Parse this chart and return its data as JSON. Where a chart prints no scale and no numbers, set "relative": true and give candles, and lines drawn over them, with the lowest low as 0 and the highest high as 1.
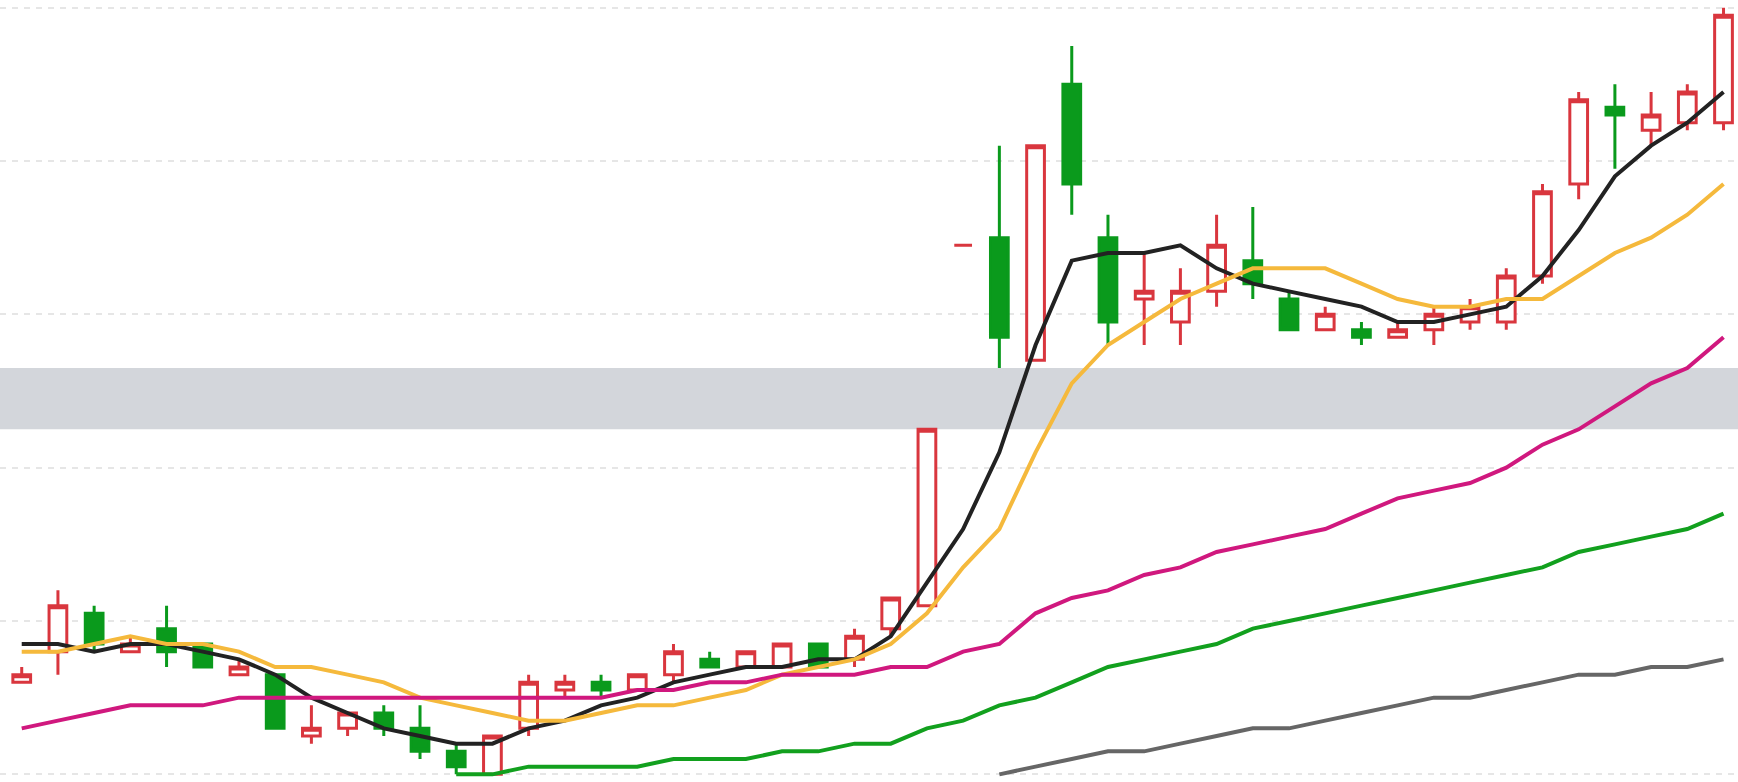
{
  "chart_data": {
    "type": "candlestick",
    "relative": true,
    "grid": "y",
    "categories": [
      null,
      null,
      null,
      null,
      null,
      null,
      null,
      null,
      null,
      null,
      null,
      null,
      null,
      null,
      null,
      null,
      null,
      null,
      null,
      null,
      null,
      null,
      null,
      null,
      null,
      null,
      null,
      null,
      null,
      null,
      null,
      null,
      null,
      null,
      null,
      null,
      null,
      null,
      null,
      null,
      null,
      null,
      null,
      null,
      null,
      null,
      null,
      null
    ],
    "ohlc": [
      [
        0.12,
        0.14,
        0.12,
        0.13
      ],
      [
        0.16,
        0.24,
        0.13,
        0.22
      ],
      [
        0.21,
        0.22,
        0.16,
        0.17
      ],
      [
        0.16,
        0.18,
        0.16,
        0.17
      ],
      [
        0.19,
        0.22,
        0.14,
        0.16
      ],
      [
        0.17,
        0.17,
        0.14,
        0.14
      ],
      [
        0.13,
        0.15,
        0.13,
        0.14
      ],
      [
        0.13,
        0.13,
        0.06,
        0.06
      ],
      [
        0.05,
        0.09,
        0.04,
        0.06
      ],
      [
        0.06,
        0.08,
        0.05,
        0.08
      ],
      [
        0.08,
        0.09,
        0.05,
        0.06
      ],
      [
        0.06,
        0.09,
        0.02,
        0.03
      ],
      [
        0.03,
        0.04,
        0,
        0.01
      ],
      [
        0,
        0.05,
        0,
        0.05
      ],
      [
        0.06,
        0.13,
        0.05,
        0.12
      ],
      [
        0.11,
        0.13,
        0.1,
        0.12
      ],
      [
        0.12,
        0.13,
        0.1,
        0.11
      ],
      [
        0.11,
        0.13,
        0.11,
        0.13
      ],
      [
        0.13,
        0.17,
        0.12,
        0.16
      ],
      [
        0.15,
        0.16,
        0.14,
        0.14
      ],
      [
        0.14,
        0.16,
        0.14,
        0.16
      ],
      [
        0.14,
        0.17,
        0.14,
        0.17
      ],
      [
        0.17,
        0.17,
        0.14,
        0.14
      ],
      [
        0.15,
        0.19,
        0.14,
        0.18
      ],
      [
        0.19,
        0.23,
        0.18,
        0.23
      ],
      [
        0.22,
        0.45,
        0.22,
        0.45
      ],
      [
        0.69,
        0.69,
        0.69,
        0.69
      ],
      [
        0.7,
        0.82,
        0.53,
        0.57
      ],
      [
        0.54,
        0.82,
        0.54,
        0.82
      ],
      [
        0.9,
        0.95,
        0.73,
        0.77
      ],
      [
        0.7,
        0.73,
        0.56,
        0.59
      ],
      [
        0.62,
        0.68,
        0.56,
        0.63
      ],
      [
        0.59,
        0.66,
        0.56,
        0.63
      ],
      [
        0.63,
        0.73,
        0.61,
        0.69
      ],
      [
        0.67,
        0.74,
        0.62,
        0.64
      ],
      [
        0.62,
        0.63,
        0.58,
        0.58
      ],
      [
        0.58,
        0.61,
        0.58,
        0.6
      ],
      [
        0.58,
        0.59,
        0.56,
        0.57
      ],
      [
        0.57,
        0.59,
        0.57,
        0.58
      ],
      [
        0.58,
        0.61,
        0.56,
        0.6
      ],
      [
        0.59,
        0.62,
        0.58,
        0.61
      ],
      [
        0.59,
        0.66,
        0.58,
        0.65
      ],
      [
        0.65,
        0.77,
        0.64,
        0.76
      ],
      [
        0.77,
        0.89,
        0.75,
        0.88
      ],
      [
        0.87,
        0.9,
        0.79,
        0.86
      ],
      [
        0.84,
        0.89,
        0.82,
        0.86
      ],
      [
        0.85,
        0.9,
        0.84,
        0.89
      ],
      [
        0.85,
        1,
        0.84,
        0.99
      ]
    ],
    "colors": [
      "#d9363e",
      "#d9363e",
      "#0a9a1c",
      "#d9363e",
      "#0a9a1c",
      "#0a9a1c",
      "#d9363e",
      "#0a9a1c",
      "#d9363e",
      "#d9363e",
      "#0a9a1c",
      "#0a9a1c",
      "#0a9a1c",
      "#d9363e",
      "#d9363e",
      "#d9363e",
      "#0a9a1c",
      "#d9363e",
      "#d9363e",
      "#0a9a1c",
      "#d9363e",
      "#d9363e",
      "#0a9a1c",
      "#d9363e",
      "#d9363e",
      "#d9363e",
      "#d9363e",
      "#0a9a1c",
      "#d9363e",
      "#0a9a1c",
      "#0a9a1c",
      "#d9363e",
      "#d9363e",
      "#d9363e",
      "#0a9a1c",
      "#0a9a1c",
      "#d9363e",
      "#0a9a1c",
      "#d9363e",
      "#d9363e",
      "#d9363e",
      "#d9363e",
      "#d9363e",
      "#d9363e",
      "#0a9a1c",
      "#d9363e",
      "#d9363e",
      "#d9363e"
    ],
    "series": [
      {
        "type": "line",
        "color": "#222222",
        "values": [
          0.17,
          0.17,
          0.16,
          0.17,
          0.17,
          0.16,
          0.15,
          0.13,
          0.1,
          0.08,
          0.06,
          0.05,
          0.04,
          0.04,
          0.06,
          0.07,
          0.09,
          0.1,
          0.12,
          0.13,
          0.14,
          0.14,
          0.15,
          0.15,
          0.18,
          0.25,
          0.32,
          0.42,
          0.56,
          0.67,
          0.68,
          0.68,
          0.69,
          0.66,
          0.64,
          0.63,
          0.62,
          0.61,
          0.59,
          0.59,
          0.6,
          0.61,
          0.65,
          0.71,
          0.78,
          0.82,
          0.85,
          0.89
        ]
      },
      {
        "type": "line",
        "color": "#f5b93c",
        "values": [
          0.16,
          0.16,
          0.17,
          0.18,
          0.17,
          0.17,
          0.16,
          0.14,
          0.14,
          0.13,
          0.12,
          0.1,
          0.09,
          0.08,
          0.07,
          0.07,
          0.08,
          0.09,
          0.09,
          0.1,
          0.11,
          0.13,
          0.14,
          0.15,
          0.17,
          0.21,
          0.27,
          0.32,
          0.42,
          0.51,
          0.56,
          0.59,
          0.62,
          0.64,
          0.66,
          0.66,
          0.66,
          0.64,
          0.62,
          0.61,
          0.61,
          0.62,
          0.62,
          0.65,
          0.68,
          0.7,
          0.73,
          0.77
        ]
      },
      {
        "type": "line",
        "color": "#d0187e",
        "values": [
          0.06,
          0.07,
          0.08,
          0.09,
          0.09,
          0.09,
          0.1,
          0.1,
          0.1,
          0.1,
          0.1,
          0.1,
          0.1,
          0.1,
          0.1,
          0.1,
          0.1,
          0.11,
          0.11,
          0.12,
          0.12,
          0.13,
          0.13,
          0.13,
          0.14,
          0.14,
          0.16,
          0.17,
          0.21,
          0.23,
          0.24,
          0.26,
          0.27,
          0.29,
          0.3,
          0.31,
          0.32,
          0.34,
          0.36,
          0.37,
          0.38,
          0.4,
          0.43,
          0.45,
          0.48,
          0.51,
          0.53,
          0.57
        ]
      },
      {
        "type": "line",
        "color": "#12a01e",
        "values": [
          null,
          null,
          null,
          null,
          null,
          null,
          null,
          null,
          null,
          null,
          null,
          null,
          0.0,
          0.0,
          0.01,
          0.01,
          0.01,
          0.01,
          0.02,
          0.02,
          0.02,
          0.03,
          0.03,
          0.04,
          0.04,
          0.06,
          0.07,
          0.09,
          0.1,
          0.12,
          0.14,
          0.15,
          0.16,
          0.17,
          0.19,
          0.2,
          0.21,
          0.22,
          0.23,
          0.24,
          0.25,
          0.26,
          0.27,
          0.29,
          0.3,
          0.31,
          0.32,
          0.34
        ]
      },
      {
        "type": "line",
        "color": "#666666",
        "values": [
          null,
          null,
          null,
          null,
          null,
          null,
          null,
          null,
          null,
          null,
          null,
          null,
          null,
          null,
          null,
          null,
          null,
          null,
          null,
          null,
          null,
          null,
          null,
          null,
          null,
          null,
          null,
          0.0,
          0.01,
          0.02,
          0.03,
          0.03,
          0.04,
          0.05,
          0.06,
          0.06,
          0.07,
          0.08,
          0.09,
          0.1,
          0.1,
          0.11,
          0.12,
          0.13,
          0.13,
          0.14,
          0.14,
          0.15
        ]
      }
    ],
    "bands": [
      {
        "axis": "y",
        "from": 0.45,
        "to": 0.53,
        "color": "#d3d6db"
      }
    ]
  }
}
